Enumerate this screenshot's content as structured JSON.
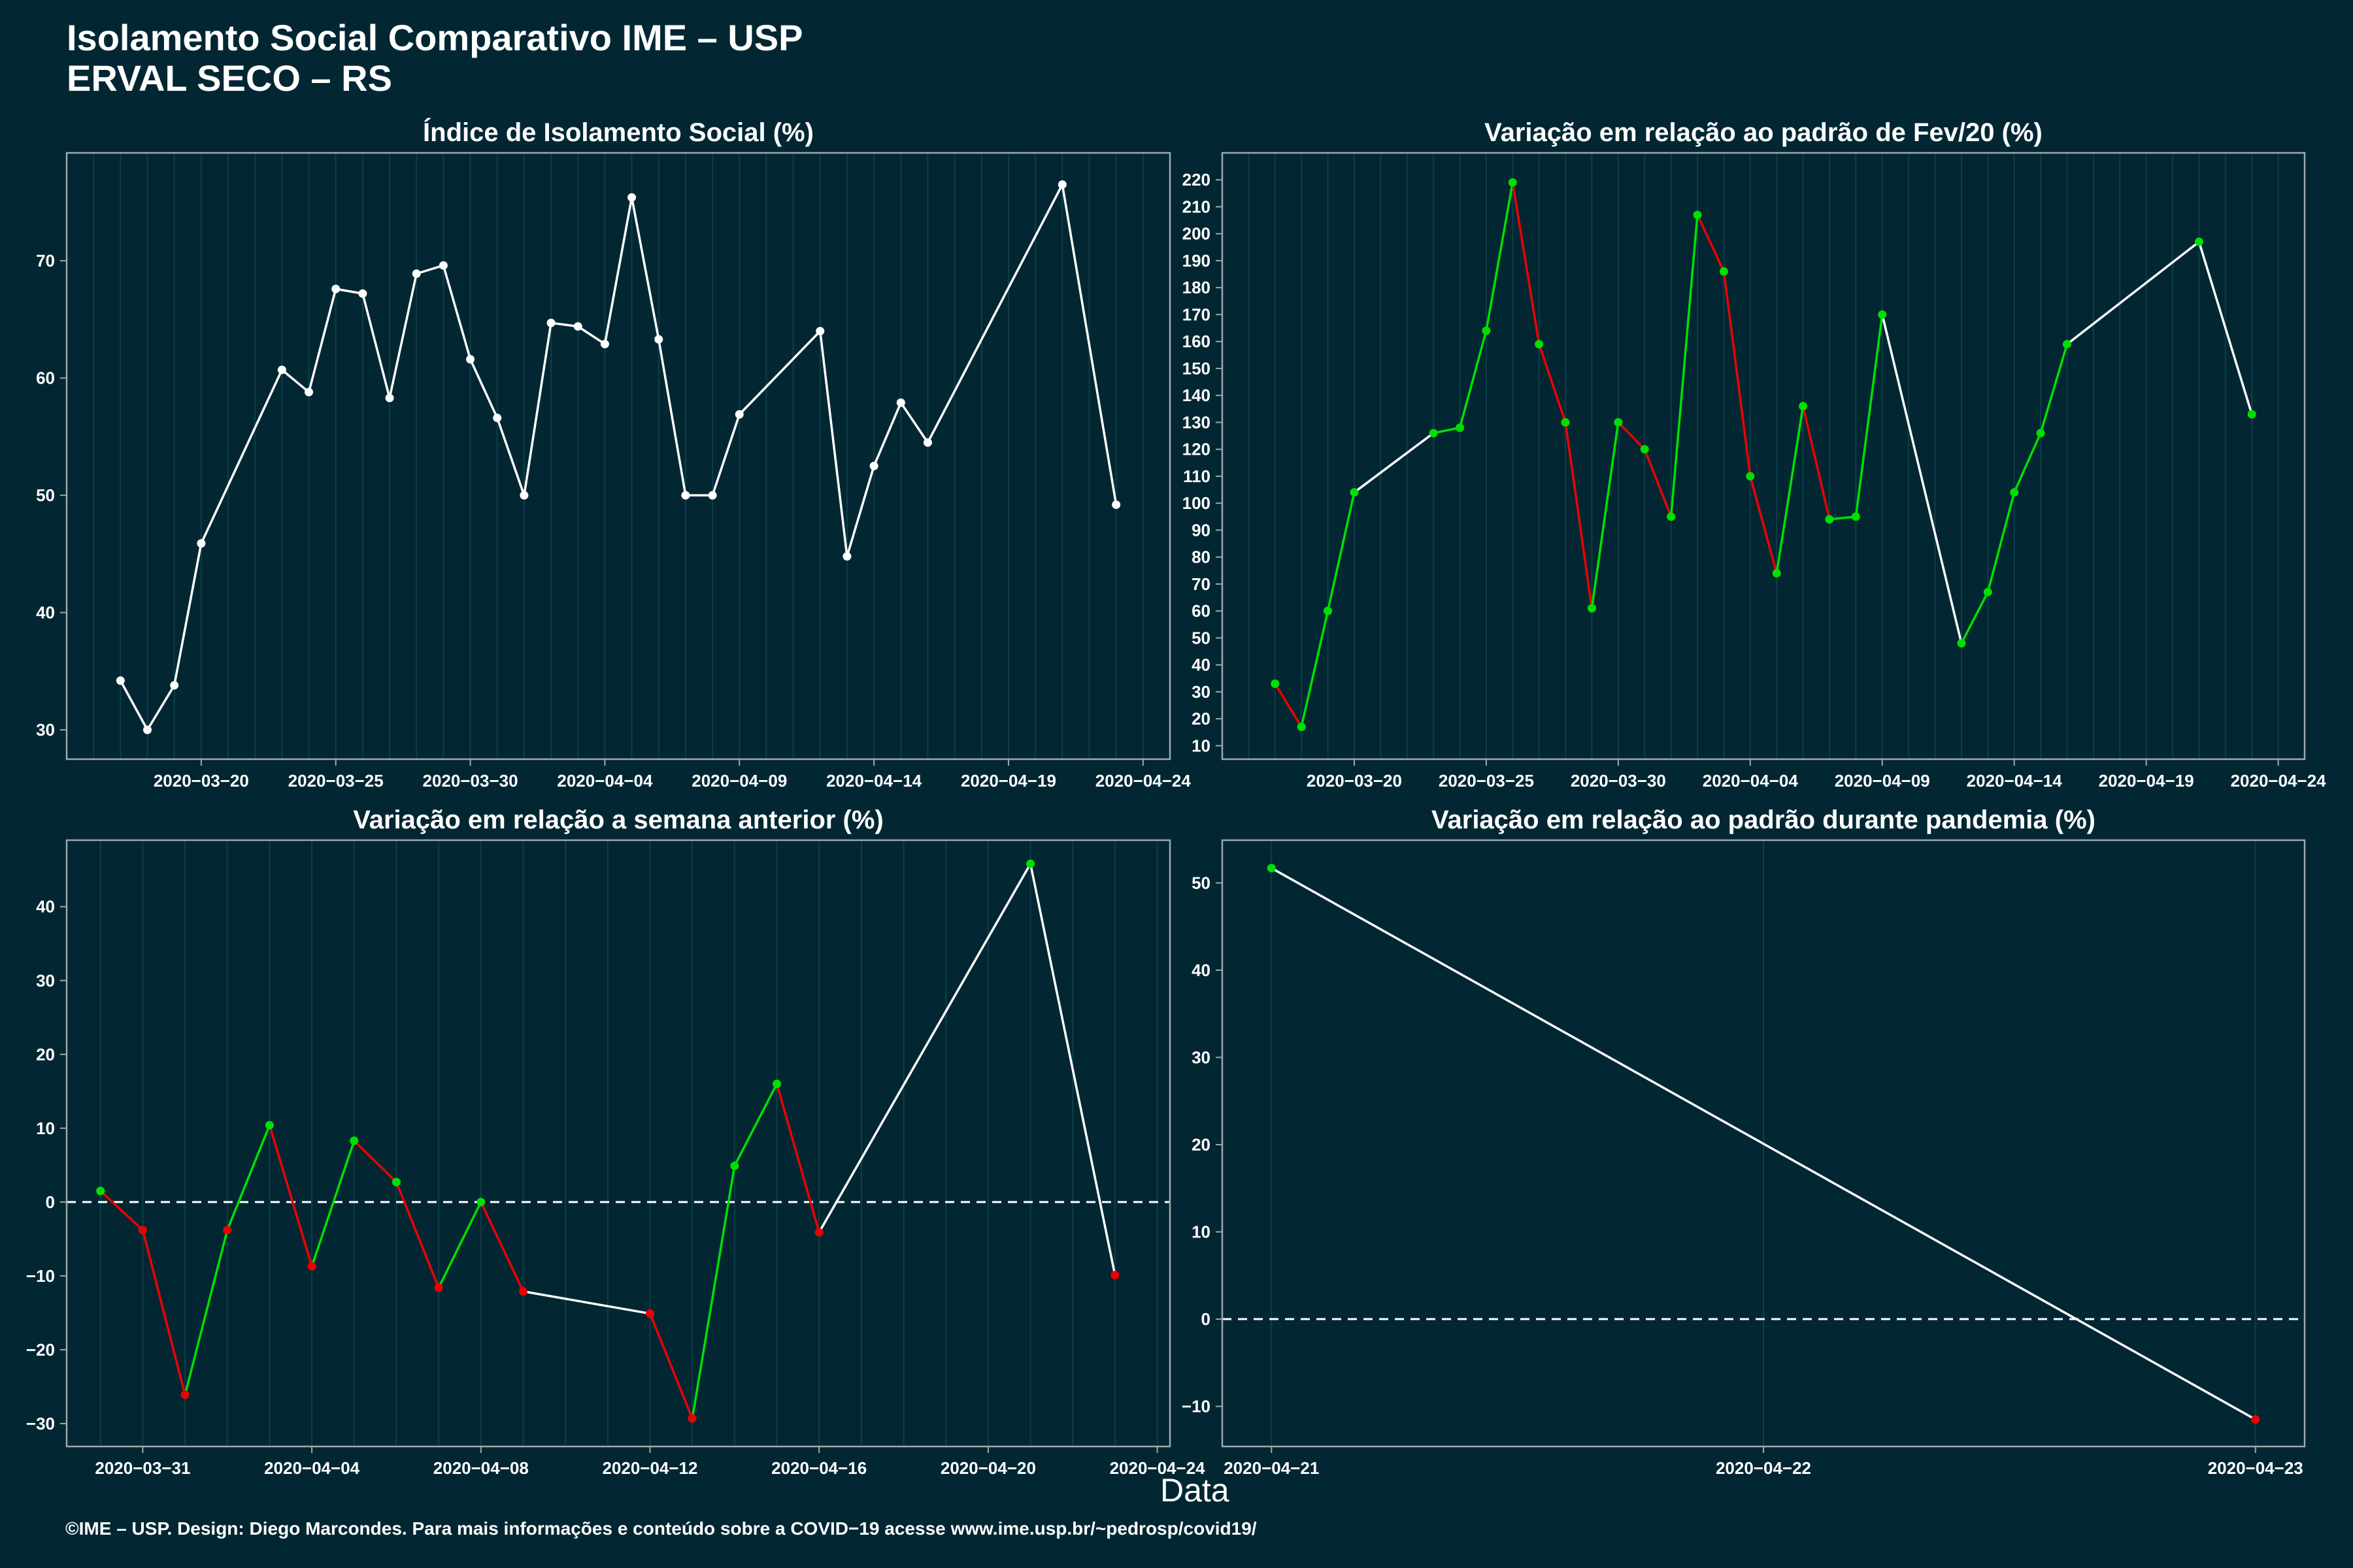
{
  "title": "Isolamento Social Comparativo IME – USP",
  "subtitle": "ERVAL SECO – RS",
  "xlabel": "Data",
  "footer": "©IME – USP. Design: Diego Marcondes. Para mais informações e conteúdo sobre a COVID−19 acesse www.ime.usp.br/~pedrosp/covid19/",
  "colors": {
    "background": "#022733",
    "line_default": "#ffffff",
    "increase": "#00e000",
    "decrease": "#ee0000",
    "grid": "#0d3f48",
    "axis": "#a0a8ab"
  },
  "chart_data": [
    {
      "type": "line",
      "title": "Índice de Isolamento Social (%)",
      "x": [
        "2020-03-17",
        "2020-03-18",
        "2020-03-19",
        "2020-03-20",
        "2020-03-23",
        "2020-03-24",
        "2020-03-25",
        "2020-03-26",
        "2020-03-27",
        "2020-03-28",
        "2020-03-29",
        "2020-03-30",
        "2020-03-31",
        "2020-04-01",
        "2020-04-02",
        "2020-04-03",
        "2020-04-04",
        "2020-04-05",
        "2020-04-06",
        "2020-04-07",
        "2020-04-08",
        "2020-04-09",
        "2020-04-12",
        "2020-04-13",
        "2020-04-14",
        "2020-04-15",
        "2020-04-16",
        "2020-04-21",
        "2020-04-23"
      ],
      "values": [
        34.2,
        30.0,
        33.8,
        45.9,
        60.7,
        58.8,
        67.6,
        67.2,
        58.3,
        68.9,
        69.6,
        61.6,
        56.6,
        50.0,
        64.7,
        64.4,
        62.9,
        75.4,
        63.3,
        50.0,
        50.0,
        56.9,
        64.0,
        44.8,
        52.5,
        57.9,
        54.5,
        76.5,
        49.2
      ],
      "point_colors": [
        "w",
        "w",
        "w",
        "w",
        "w",
        "w",
        "w",
        "w",
        "w",
        "w",
        "w",
        "w",
        "w",
        "w",
        "w",
        "w",
        "w",
        "w",
        "w",
        "w",
        "w",
        "w",
        "w",
        "w",
        "w",
        "w",
        "w",
        "w",
        "w"
      ],
      "xlim": [
        "2020-03-15",
        "2020-04-25"
      ],
      "ylim": [
        27.5,
        79.2
      ],
      "yticks": [
        30,
        40,
        50,
        60,
        70
      ],
      "xticks": [
        "2020-03-20",
        "2020-03-25",
        "2020-03-30",
        "2020-04-04",
        "2020-04-09",
        "2020-04-14",
        "2020-04-19",
        "2020-04-24"
      ]
    },
    {
      "type": "line",
      "title": "Variação em relação ao padrão de Fev/20 (%)",
      "x": [
        "2020-03-17",
        "2020-03-18",
        "2020-03-19",
        "2020-03-20",
        "2020-03-23",
        "2020-03-24",
        "2020-03-25",
        "2020-03-26",
        "2020-03-27",
        "2020-03-28",
        "2020-03-29",
        "2020-03-30",
        "2020-03-31",
        "2020-04-01",
        "2020-04-02",
        "2020-04-03",
        "2020-04-04",
        "2020-04-05",
        "2020-04-06",
        "2020-04-07",
        "2020-04-08",
        "2020-04-09",
        "2020-04-12",
        "2020-04-13",
        "2020-04-14",
        "2020-04-15",
        "2020-04-16",
        "2020-04-21",
        "2020-04-23"
      ],
      "values": [
        33,
        17,
        60,
        104,
        126,
        128,
        164,
        219,
        159,
        130,
        61,
        130,
        120,
        95,
        207,
        186,
        110,
        74,
        136,
        94,
        95,
        170,
        48,
        67,
        104,
        126,
        159,
        197,
        133
      ],
      "point_colors": [
        "g",
        "g",
        "g",
        "g",
        "g",
        "g",
        "g",
        "g",
        "g",
        "g",
        "g",
        "g",
        "g",
        "g",
        "g",
        "g",
        "g",
        "g",
        "g",
        "g",
        "g",
        "g",
        "g",
        "g",
        "g",
        "g",
        "g",
        "g",
        "g"
      ],
      "xlim": [
        "2020-03-15",
        "2020-04-25"
      ],
      "ylim": [
        5,
        230
      ],
      "yticks": [
        10,
        20,
        30,
        40,
        50,
        60,
        70,
        80,
        90,
        100,
        110,
        120,
        130,
        140,
        150,
        160,
        170,
        180,
        190,
        200,
        210,
        220
      ],
      "xticks": [
        "2020-03-20",
        "2020-03-25",
        "2020-03-30",
        "2020-04-04",
        "2020-04-09",
        "2020-04-14",
        "2020-04-19",
        "2020-04-24"
      ]
    },
    {
      "type": "line",
      "title": "Variação em relação a semana anterior (%)",
      "x": [
        "2020-03-30",
        "2020-03-31",
        "2020-04-01",
        "2020-04-02",
        "2020-04-03",
        "2020-04-04",
        "2020-04-05",
        "2020-04-06",
        "2020-04-07",
        "2020-04-08",
        "2020-04-09",
        "2020-04-12",
        "2020-04-13",
        "2020-04-14",
        "2020-04-15",
        "2020-04-16",
        "2020-04-21",
        "2020-04-23"
      ],
      "values": [
        1.5,
        -3.8,
        -26.1,
        -3.8,
        10.4,
        -8.7,
        8.3,
        2.7,
        -11.6,
        0.0,
        -12.1,
        -15.1,
        -29.3,
        4.9,
        16.0,
        -4.1,
        45.8,
        -9.9
      ],
      "point_colors": [
        "g",
        "r",
        "r",
        "r",
        "g",
        "r",
        "g",
        "g",
        "r",
        "g",
        "r",
        "r",
        "r",
        "g",
        "g",
        "r",
        "g",
        "r"
      ],
      "xlim": [
        "2020-03-29.2",
        "2020-04-24.3"
      ],
      "ylim": [
        -33.1,
        49.0
      ],
      "yticks": [
        -30,
        -20,
        -10,
        0,
        10,
        20,
        30,
        40
      ],
      "xticks": [
        "2020-03-31",
        "2020-04-04",
        "2020-04-08",
        "2020-04-12",
        "2020-04-16",
        "2020-04-20",
        "2020-04-24"
      ],
      "reference_line": 0
    },
    {
      "type": "line",
      "title": "Variação em relação ao padrão durante pandemia (%)",
      "x": [
        "2020-04-21",
        "2020-04-23"
      ],
      "values": [
        51.7,
        -11.5
      ],
      "point_colors": [
        "g",
        "r"
      ],
      "xlim": [
        "2020-04-20.9",
        "2020-04-23.1"
      ],
      "ylim": [
        -14.6,
        54.9
      ],
      "yticks": [
        -10,
        0,
        10,
        20,
        30,
        40,
        50
      ],
      "xticks": [
        "2020-04-21",
        "2020-04-22",
        "2020-04-23"
      ],
      "reference_line": 0
    }
  ]
}
